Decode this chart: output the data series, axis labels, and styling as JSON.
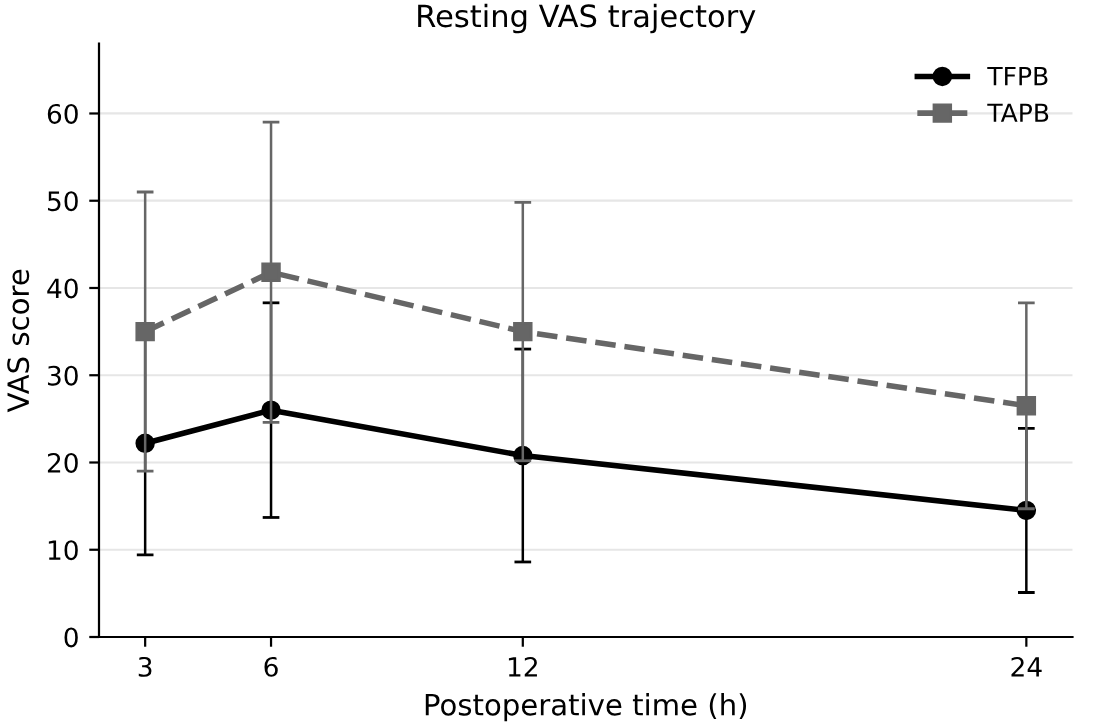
{
  "chart_data": {
    "type": "line",
    "title": "Resting VAS trajectory",
    "xlabel": "Postoperative time (h)",
    "ylabel": "VAS score",
    "x": [
      3,
      6,
      12,
      24
    ],
    "series": [
      {
        "name": "TFPB",
        "color": "#000000",
        "values": [
          22.2,
          26,
          20.8,
          14.5
        ],
        "errors": [
          12.8,
          12.3,
          12.2,
          9.4
        ],
        "marker": "circle",
        "line_style": "solid"
      },
      {
        "name": "TAPB",
        "color": "#666666",
        "values": [
          35,
          41.8,
          35,
          26.5
        ],
        "errors": [
          16,
          17.2,
          14.8,
          11.8
        ],
        "marker": "square",
        "line_style": "dashed"
      }
    ],
    "xlim": [
      1.9,
      25.1
    ],
    "xticks": [
      3,
      6,
      12,
      24
    ],
    "ylim": [
      0,
      68
    ],
    "yticks": [
      0,
      10,
      20,
      30,
      40,
      50,
      60
    ],
    "grid": "y",
    "legend": "top right"
  }
}
